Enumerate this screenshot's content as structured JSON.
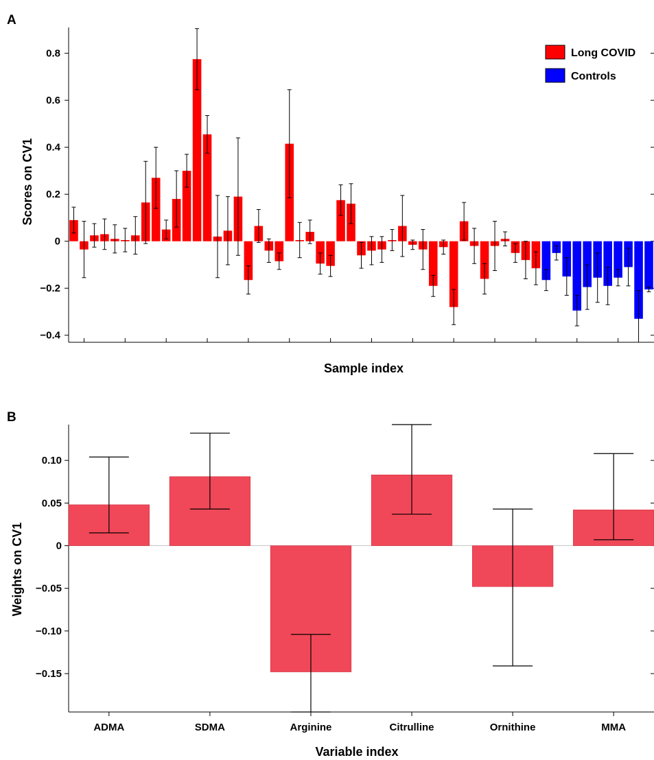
{
  "chart_data": [
    {
      "panel": "A",
      "type": "bar",
      "xlabel": "Sample index",
      "ylabel": "Scores on CV1",
      "ylim": [
        -0.43,
        0.91
      ],
      "yticks": [
        -0.4,
        -0.2,
        0,
        0.2,
        0.4,
        0.6,
        0.8
      ],
      "ytick_labels": [
        "−0.4",
        "−0.2",
        "0",
        "0.2",
        "0.4",
        "0.6",
        "0.8"
      ],
      "legend_position": "top-right",
      "legend": [
        {
          "label": "Long COVID",
          "color": "#ff0000"
        },
        {
          "label": "Controls",
          "color": "#0000ff"
        }
      ],
      "series": [
        {
          "name": "Long COVID",
          "color": "#ff0000",
          "values": [
            0.09,
            -0.035,
            0.025,
            0.03,
            0.01,
            0.005,
            0.025,
            0.165,
            0.27,
            0.05,
            0.18,
            0.3,
            0.775,
            0.455,
            0.02,
            0.045,
            0.19,
            -0.165,
            0.065,
            -0.04,
            -0.085,
            0.415,
            0.005,
            0.04,
            -0.095,
            -0.105,
            0.175,
            0.16,
            -0.06,
            -0.04,
            -0.035,
            0.005,
            0.065,
            -0.015,
            -0.035,
            -0.19,
            -0.025,
            -0.28,
            0.085,
            -0.02,
            -0.16,
            -0.02,
            0.01,
            -0.05,
            -0.08,
            -0.115
          ],
          "errors": [
            0.055,
            0.12,
            0.05,
            0.065,
            0.06,
            0.05,
            0.08,
            0.175,
            0.13,
            0.04,
            0.12,
            0.07,
            0.13,
            0.08,
            0.175,
            0.145,
            0.25,
            0.06,
            0.07,
            0.05,
            0.035,
            0.23,
            0.075,
            0.05,
            0.045,
            0.045,
            0.065,
            0.085,
            0.055,
            0.06,
            0.055,
            0.045,
            0.13,
            0.02,
            0.085,
            0.045,
            0.03,
            0.075,
            0.08,
            0.075,
            0.065,
            0.105,
            0.03,
            0.04,
            0.08,
            0.07
          ]
        },
        {
          "name": "Controls",
          "color": "#0000ff",
          "values": [
            -0.165,
            -0.05,
            -0.15,
            -0.295,
            -0.195,
            -0.155,
            -0.19,
            -0.155,
            -0.11,
            -0.33,
            -0.205
          ],
          "errors": [
            0.045,
            0.03,
            0.08,
            0.065,
            0.095,
            0.105,
            0.08,
            0.035,
            0.08,
            0.12,
            0.01
          ]
        }
      ]
    },
    {
      "panel": "B",
      "type": "bar",
      "xlabel": "Variable index",
      "ylabel": "Weights on CV1",
      "ylim": [
        -0.195,
        0.142
      ],
      "yticks": [
        -0.15,
        -0.1,
        -0.05,
        0,
        0.05,
        0.1
      ],
      "ytick_labels": [
        "−0.15",
        "−0.10",
        "−0.05",
        "0",
        "0.05",
        "0.10"
      ],
      "bar_color": "#f04858",
      "categories": [
        "ADMA",
        "SDMA",
        "Arginine",
        "Citrulline",
        "Ornithine",
        "MMA"
      ],
      "values": [
        0.048,
        0.081,
        -0.148,
        0.083,
        -0.048,
        0.042
      ],
      "error_low": [
        0.015,
        0.043,
        -0.195,
        0.037,
        -0.141,
        0.007
      ],
      "error_high": [
        0.104,
        0.132,
        -0.104,
        0.142,
        0.043,
        0.108
      ]
    }
  ]
}
